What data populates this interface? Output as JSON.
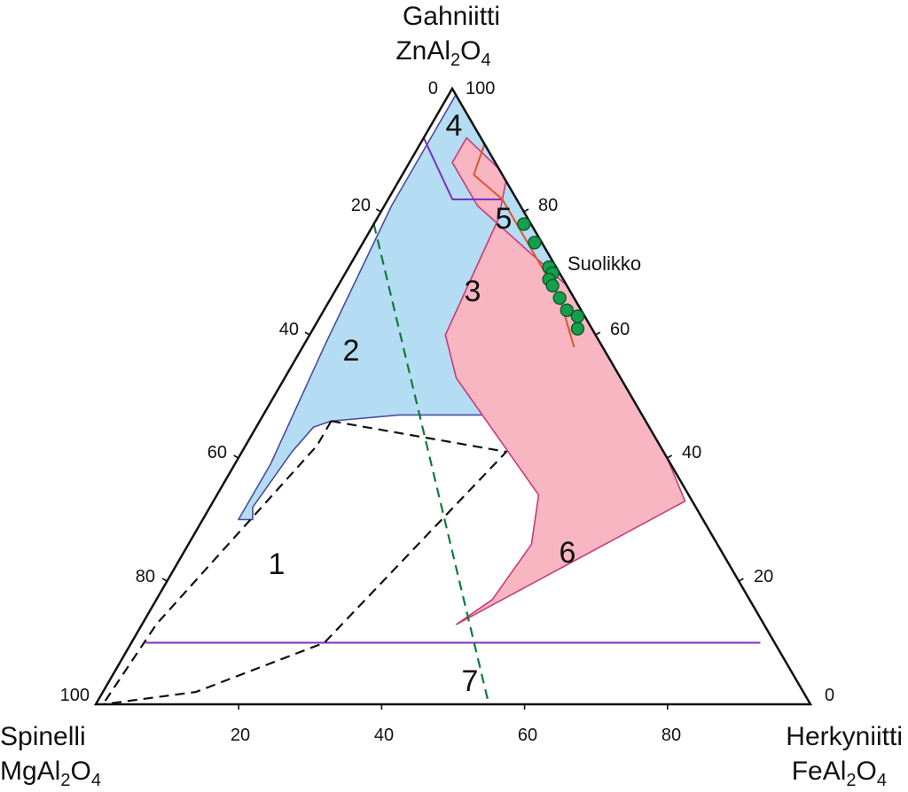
{
  "chart_data": {
    "type": "ternary",
    "title": "",
    "apices": {
      "top": {
        "name": "Gahniitti",
        "formula": [
          "ZnAl",
          "2",
          "O",
          "4"
        ]
      },
      "left": {
        "name": "Spinelli",
        "formula": [
          "MgAl",
          "2",
          "O",
          "4"
        ]
      },
      "right": {
        "name": "Herkyniitti",
        "formula": [
          "FeAl",
          "2",
          "O",
          "4"
        ]
      }
    },
    "tick_values": [
      0,
      20,
      40,
      60,
      80,
      100
    ],
    "axes": {
      "bottom": {
        "component": "Herkyniitti",
        "ticks": [
          20,
          40,
          60,
          80
        ],
        "corner_labels": {
          "left": "100",
          "right": "0"
        }
      },
      "left": {
        "component": "Spinelli",
        "ticks": [
          20,
          40,
          60,
          80
        ],
        "corner_labels": {
          "top": "0"
        }
      },
      "right": {
        "component": "Gahniitti",
        "ticks": [
          20,
          40,
          60,
          80
        ],
        "corner_labels": {
          "top": "100"
        }
      }
    },
    "regions": [
      {
        "id": "1",
        "label": "1",
        "fill": "#b4dcf2",
        "stroke": "#4a4aa0",
        "points": [
          [
            99,
            0,
            1
          ],
          [
            49,
            0,
            51
          ],
          [
            50,
            1,
            49
          ],
          [
            47,
            4,
            49
          ],
          [
            47,
            15,
            38
          ],
          [
            47,
            34,
            19
          ],
          [
            46,
            44,
            10
          ],
          [
            45,
            47,
            8
          ],
          [
            41,
            52,
            7
          ],
          [
            32,
            62,
            6
          ],
          [
            30,
            63,
            7
          ],
          [
            30,
            65,
            5
          ],
          [
            39,
            56,
            5
          ],
          [
            58,
            39,
            3
          ],
          [
            81,
            18,
            1
          ],
          [
            99,
            0,
            1
          ]
        ]
      },
      {
        "id": "3",
        "label": "3",
        "fill": "#f7b6c2",
        "stroke": "#c83a7a",
        "points": [
          [
            13,
            43,
            44
          ],
          [
            17,
            36,
            47
          ],
          [
            26,
            26,
            48
          ],
          [
            34,
            21,
            45
          ],
          [
            53,
            23,
            24
          ],
          [
            60,
            21,
            19
          ],
          [
            79,
            4,
            17
          ],
          [
            85,
            0,
            15
          ],
          [
            87,
            0,
            13
          ],
          [
            92,
            2,
            6
          ],
          [
            88,
            6,
            6
          ],
          [
            81,
            6,
            13
          ],
          [
            68,
            0,
            32
          ],
          [
            48,
            0,
            52
          ],
          [
            40,
            0,
            60
          ],
          [
            33,
            1,
            66
          ],
          [
            13,
            43,
            44
          ]
        ]
      },
      {
        "id": "2",
        "label": "2"
      },
      {
        "id": "4",
        "label": "4"
      },
      {
        "id": "5",
        "label": "5"
      },
      {
        "id": "6",
        "label": "6"
      },
      {
        "id": "7",
        "label": "7"
      }
    ],
    "lines": [
      {
        "color": "#7b2fbe",
        "style": "solid",
        "points": [
          [
            10,
            88,
            2
          ],
          [
            10,
            2,
            88
          ]
        ]
      },
      {
        "color": "#7b2fbe",
        "style": "solid",
        "points": [
          [
            92,
            8,
            0
          ],
          [
            82,
            9,
            9
          ],
          [
            82,
            2,
            16
          ]
        ]
      },
      {
        "color": "#e0542a",
        "style": "solid",
        "points": [
          [
            91,
            0,
            9
          ],
          [
            86,
            4,
            10
          ],
          [
            82,
            2,
            16
          ],
          [
            66,
            2,
            32
          ],
          [
            58,
            4,
            38
          ]
        ]
      },
      {
        "color": "#0e7a3a",
        "style": "dashed",
        "points": [
          [
            78,
            22,
            0
          ],
          [
            0,
            45,
            55
          ]
        ]
      },
      {
        "color": "#111111",
        "style": "dashed",
        "points": [
          [
            46,
            44,
            10
          ],
          [
            41,
            22,
            37
          ],
          [
            10,
            63,
            27
          ],
          [
            2,
            85,
            13
          ],
          [
            0,
            99,
            1
          ]
        ]
      },
      {
        "color": "#111111",
        "style": "dashed",
        "points": [
          [
            46,
            44,
            10
          ],
          [
            42,
            48,
            10
          ],
          [
            13,
            85,
            2
          ],
          [
            0,
            99,
            1
          ]
        ]
      }
    ],
    "points": {
      "name": "Suolikko",
      "color": "#14a04a",
      "values": [
        [
          78,
          1,
          21
        ],
        [
          75,
          1,
          24
        ],
        [
          71,
          1,
          28
        ],
        [
          70,
          1,
          29
        ],
        [
          69,
          2,
          29
        ],
        [
          68,
          2,
          30
        ],
        [
          66,
          2,
          32
        ],
        [
          64,
          2,
          34
        ],
        [
          63,
          1,
          36
        ],
        [
          61,
          2,
          37
        ]
      ]
    },
    "annotations": [
      {
        "text": "Suolikko"
      }
    ],
    "grid": false,
    "legend": "none"
  }
}
